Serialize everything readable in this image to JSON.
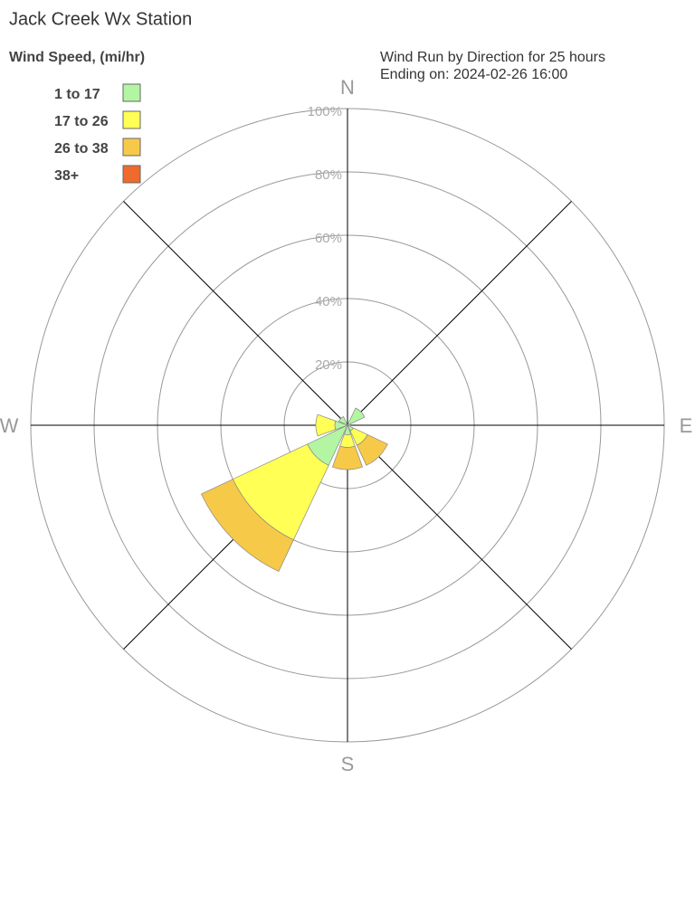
{
  "chart_data": {
    "type": "windrose",
    "title": "Jack Creek Wx Station",
    "legend_title": "Wind Speed, (mi/hr)",
    "subtitle": [
      "Wind Run by Direction for 25 hours",
      "Ending on: 2024-02-26 16:00"
    ],
    "categories": [
      "N",
      null,
      "E",
      null,
      "S",
      null,
      "W",
      null
    ],
    "rlim": [
      0,
      100
    ],
    "rticks": [
      {
        "value": 20,
        "label": "20%"
      },
      {
        "value": 40,
        "label": "40%"
      },
      {
        "value": 60,
        "label": "60%"
      },
      {
        "value": 80,
        "label": "80%"
      },
      {
        "value": 100,
        "label": "100%"
      }
    ],
    "legend": "upper left",
    "series": [
      {
        "name": "1 to 17",
        "color": "#b3f5a3",
        "values": [
          0,
          6,
          1,
          2,
          3,
          14,
          4,
          3
        ]
      },
      {
        "name": "17 to 26",
        "color": "#ffff55",
        "values": [
          0,
          0,
          0,
          5,
          4,
          26,
          6,
          0
        ]
      },
      {
        "name": "26 to 38",
        "color": "#f7c948",
        "values": [
          0,
          0,
          0,
          7,
          7,
          11,
          0,
          0
        ]
      },
      {
        "name": "38+",
        "color": "#ee6b2b",
        "values": [
          0,
          0,
          0,
          0,
          0,
          0,
          0,
          0
        ]
      }
    ]
  }
}
